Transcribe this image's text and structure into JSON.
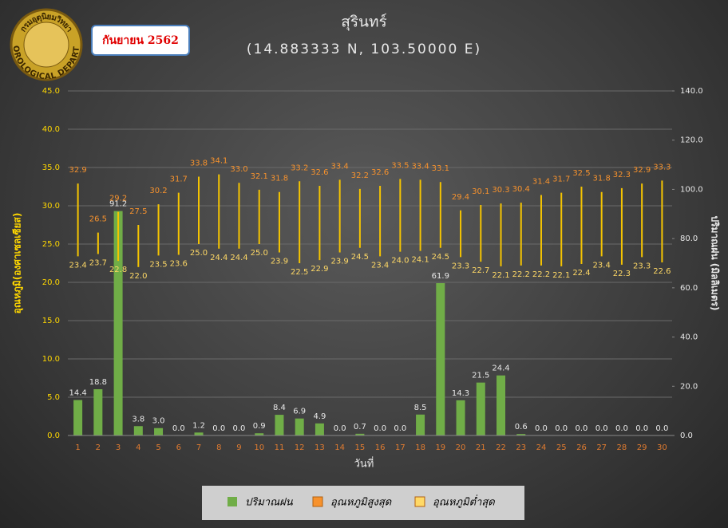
{
  "header": {
    "logo_top": "กรมอุตุนิยมวิทยา",
    "logo_bottom": "METEOROLOGICAL DEPARTMENT",
    "date": "กันยายน 2562"
  },
  "chart_data": {
    "type": "bar",
    "title": "สุรินทร์",
    "subtitle": "(14.883333 N, 103.50000 E)",
    "x_label": "วันที่",
    "y_label": "อุณหภูมิ(องศาเซลเซียส)",
    "y2_label": "ปริมาณฝน (มิลลิเมตร)",
    "categories": [
      "1",
      "2",
      "3",
      "4",
      "5",
      "6",
      "7",
      "8",
      "9",
      "10",
      "11",
      "12",
      "13",
      "14",
      "15",
      "16",
      "17",
      "18",
      "19",
      "20",
      "21",
      "22",
      "23",
      "24",
      "25",
      "26",
      "27",
      "28",
      "29",
      "30"
    ],
    "series": [
      {
        "name": "ปริมาณฝน",
        "color": "#70ad47",
        "axis": "y2",
        "values": [
          14.4,
          18.8,
          91.2,
          3.8,
          3.0,
          0,
          1.2,
          0,
          0,
          0.9,
          8.4,
          6.9,
          4.9,
          0,
          0.7,
          0,
          0,
          8.5,
          61.9,
          14.3,
          21.5,
          24.4,
          0.6,
          0,
          0,
          0,
          0,
          0,
          0,
          0
        ],
        "value_labels": [
          "14.4",
          "18.8",
          "91.2",
          "3.8",
          "3.0",
          "0.0",
          "1.2",
          "0.0",
          "0.0",
          "0.9",
          "8.4",
          "6.9",
          "4.9",
          "0.0",
          "0.7",
          "0.0",
          "0.0",
          "8.5",
          "61.9",
          "14.3",
          "21.5",
          "24.4",
          "0.6",
          "0.0",
          "0.0",
          "0.0",
          "0.0",
          "0.0",
          "0.0",
          "0.0"
        ]
      },
      {
        "name": "อุณหภูมิสูงสุด",
        "color": "#f7922d",
        "values": [
          32.9,
          26.5,
          29.2,
          27.5,
          30.2,
          31.7,
          33.8,
          34.1,
          33.0,
          32.1,
          31.8,
          33.2,
          32.6,
          33.4,
          32.2,
          32.6,
          33.5,
          33.4,
          33.1,
          29.4,
          30.1,
          30.3,
          30.4,
          31.4,
          31.7,
          32.5,
          31.8,
          32.3,
          32.9,
          33.3
        ],
        "value_labels": [
          "32.9",
          "26.5",
          "29.2",
          "27.5",
          "30.2",
          "31.7",
          "33.8",
          "34.1",
          "33.0",
          "32.1",
          "31.8",
          "33.2",
          "32.6",
          "33.4",
          "32.2",
          "32.6",
          "33.5",
          "33.4",
          "33.1",
          "29.4",
          "30.1",
          "30.3",
          "30.4",
          "31.4",
          "31.7",
          "32.5",
          "31.8",
          "32.3",
          "32.9",
          "33.3"
        ]
      },
      {
        "name": "อุณหภูมิต่ำสุด",
        "color": "#ffd966",
        "values": [
          23.4,
          23.7,
          22.8,
          22.0,
          23.5,
          23.6,
          25.0,
          24.4,
          24.4,
          25.0,
          23.9,
          22.5,
          22.9,
          23.9,
          24.5,
          23.4,
          24.0,
          24.1,
          24.5,
          23.3,
          22.7,
          22.1,
          22.2,
          22.2,
          22.1,
          22.4,
          23.4,
          22.3,
          23.3,
          22.6
        ],
        "value_labels": [
          "23.4",
          "23.7",
          "22.8",
          "22.0",
          "23.5",
          "23.6",
          "25.0",
          "24.4",
          "24.4",
          "25.0",
          "23.9",
          "22.5",
          "22.9",
          "23.9",
          "24.5",
          "23.4",
          "24.0",
          "24.1",
          "24.5",
          "23.3",
          "22.7",
          "22.1",
          "22.2",
          "22.2",
          "22.1",
          "22.4",
          "23.4",
          "22.3",
          "23.3",
          "22.6"
        ]
      }
    ],
    "ylim": [
      0,
      45
    ],
    "yticks": [
      {
        "value": 0,
        "label": "0.0"
      },
      {
        "value": 5,
        "label": "5.0"
      },
      {
        "value": 10,
        "label": "10.0"
      },
      {
        "value": 15,
        "label": "15.0"
      },
      {
        "value": 20,
        "label": "20.0"
      },
      {
        "value": 25,
        "label": "25.0"
      },
      {
        "value": 30,
        "label": "30.0"
      },
      {
        "value": 35,
        "label": "35.0"
      },
      {
        "value": 40,
        "label": "40.0"
      },
      {
        "value": 45,
        "label": "45.0"
      }
    ],
    "y2lim": [
      0,
      140
    ],
    "y2ticks": [
      {
        "value": 0,
        "label": "0.0"
      },
      {
        "value": 20,
        "label": "20.0"
      },
      {
        "value": 40,
        "label": "40.0"
      },
      {
        "value": 60,
        "label": "60.0"
      },
      {
        "value": 80,
        "label": "80.0"
      },
      {
        "value": 100,
        "label": "100.0"
      },
      {
        "value": 120,
        "label": "120.0"
      },
      {
        "value": 140,
        "label": "140.0"
      }
    ],
    "grid": true,
    "legend": "bottom"
  }
}
